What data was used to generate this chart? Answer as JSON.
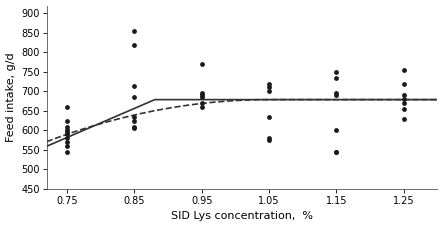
{
  "title": "",
  "xlabel": "SID Lys concentration,  %",
  "ylabel": "Feed intake, g/d",
  "xlim": [
    0.72,
    1.3
  ],
  "ylim": [
    450,
    920
  ],
  "yticks": [
    450,
    500,
    550,
    600,
    650,
    700,
    750,
    800,
    850,
    900
  ],
  "xticks": [
    0.75,
    0.85,
    0.95,
    1.05,
    1.15,
    1.25
  ],
  "broken_line_breakpoint": 0.88,
  "broken_line_plateau": 678.9,
  "broken_line_slope": 747.1,
  "quadratic_a": 689.6,
  "quadratic_b": 748.9,
  "quadratic_peak": 1.05,
  "scatter_data": {
    "x": [
      0.75,
      0.75,
      0.75,
      0.75,
      0.75,
      0.75,
      0.75,
      0.75,
      0.75,
      0.75,
      0.85,
      0.85,
      0.85,
      0.85,
      0.85,
      0.85,
      0.85,
      0.85,
      0.95,
      0.95,
      0.95,
      0.95,
      0.95,
      0.95,
      1.05,
      1.05,
      1.05,
      1.05,
      1.05,
      1.05,
      1.15,
      1.15,
      1.15,
      1.15,
      1.15,
      1.15,
      1.15,
      1.25,
      1.25,
      1.25,
      1.25,
      1.25,
      1.25,
      1.25
    ],
    "y": [
      660,
      625,
      610,
      600,
      595,
      590,
      580,
      570,
      560,
      545,
      855,
      820,
      715,
      685,
      635,
      625,
      610,
      605,
      770,
      695,
      690,
      685,
      670,
      660,
      720,
      710,
      700,
      635,
      580,
      575,
      750,
      735,
      695,
      690,
      600,
      545,
      545,
      755,
      720,
      690,
      680,
      670,
      655,
      630
    ]
  },
  "line_color": "#333333",
  "dot_color": "#333333",
  "scatter_color": "#1a1a1a",
  "bg_color": "#ffffff",
  "border_color": "#999999"
}
